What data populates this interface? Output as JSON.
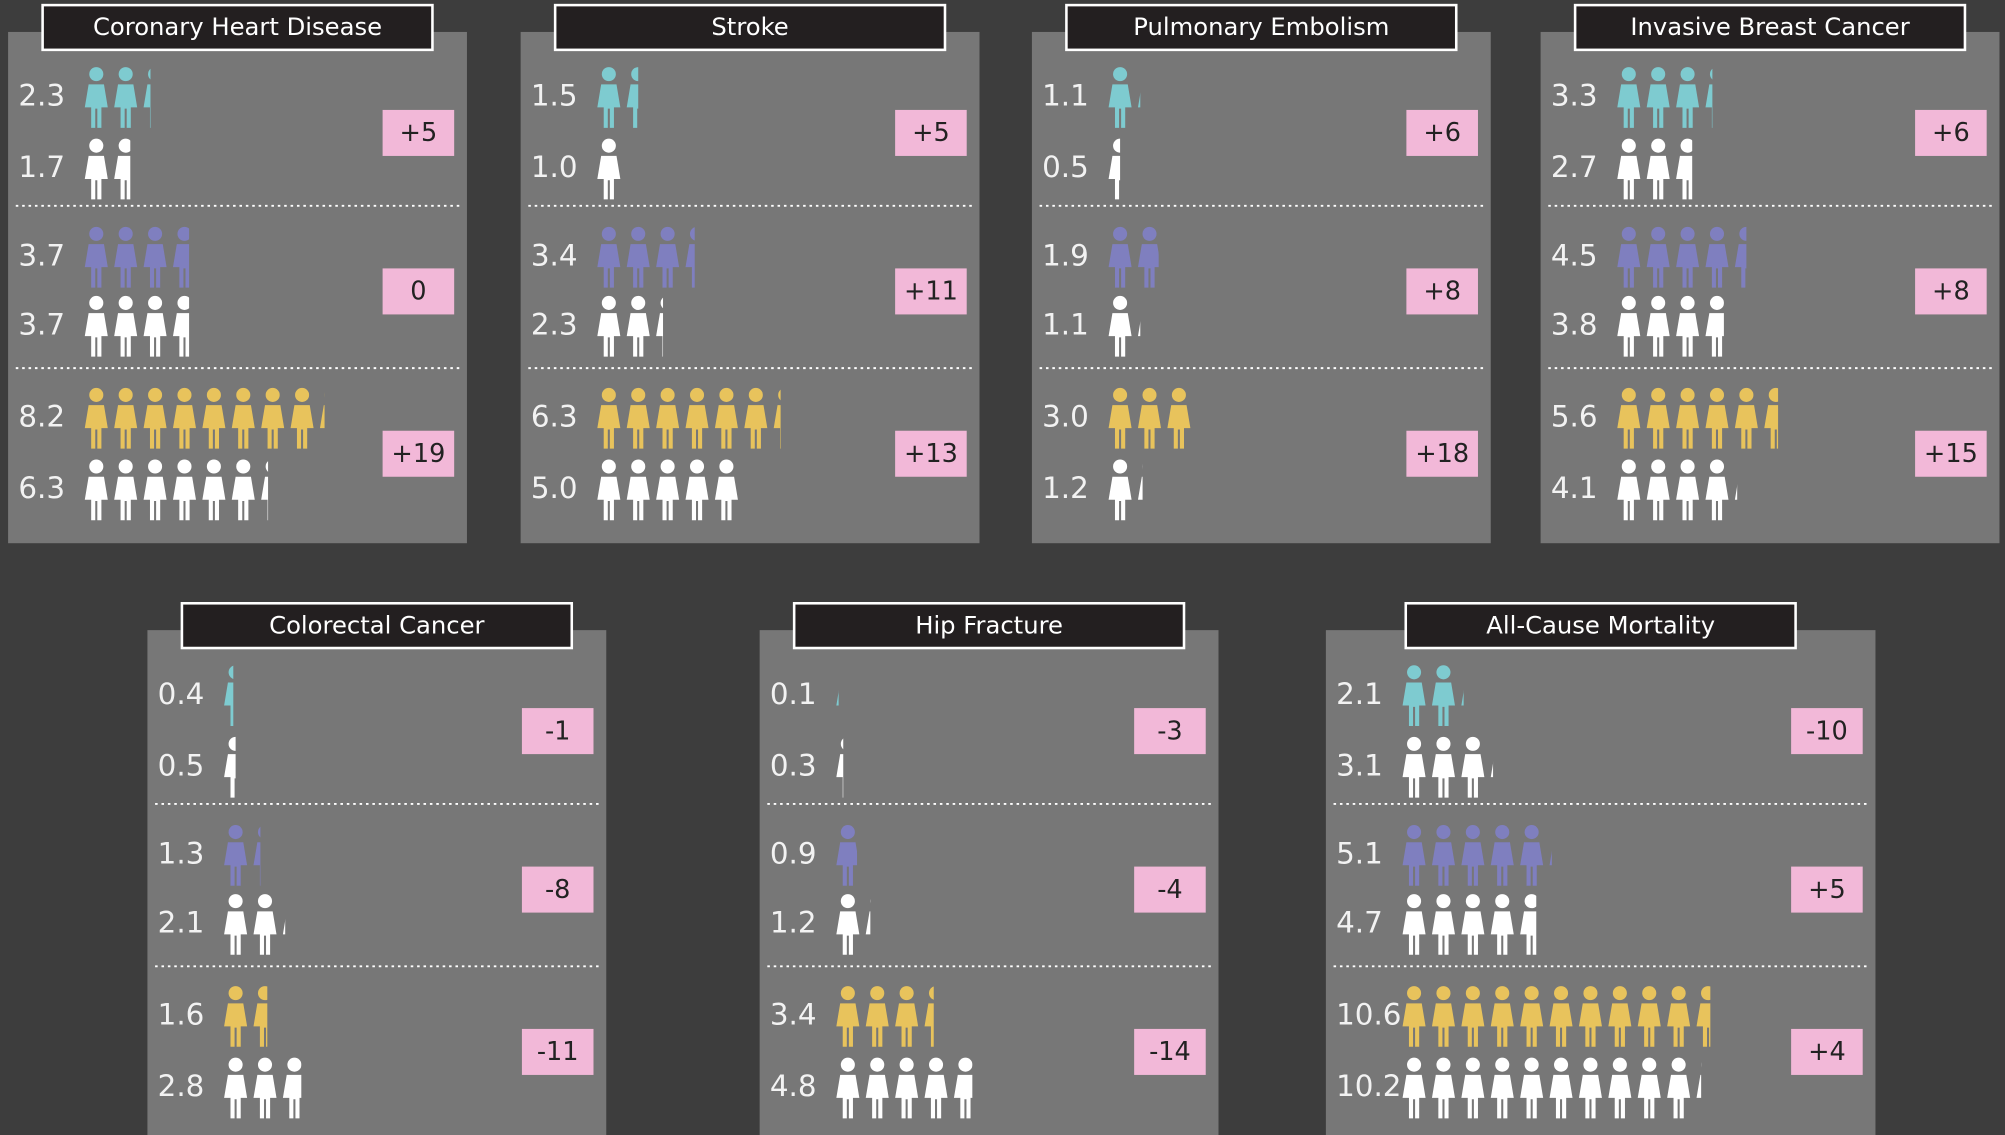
{
  "chart_data": [
    {
      "type": "pictogram",
      "title": "Coronary Heart Disease",
      "groups": [
        {
          "colors": [
            "#7ecbd0",
            "#ffffff"
          ],
          "values": [
            2.3,
            1.7
          ],
          "value_labels": [
            "2.3",
            "1.7"
          ],
          "difference": "+5"
        },
        {
          "colors": [
            "#7f7fbf",
            "#ffffff"
          ],
          "values": [
            3.7,
            3.7
          ],
          "value_labels": [
            "3.7",
            "3.7"
          ],
          "difference": "0"
        },
        {
          "colors": [
            "#e8c35c",
            "#ffffff"
          ],
          "values": [
            8.2,
            6.3
          ],
          "value_labels": [
            "8.2",
            "6.3"
          ],
          "difference": "+19"
        }
      ]
    },
    {
      "type": "pictogram",
      "title": "Stroke",
      "groups": [
        {
          "colors": [
            "#7ecbd0",
            "#ffffff"
          ],
          "values": [
            1.5,
            1.0
          ],
          "value_labels": [
            "1.5",
            "1.0"
          ],
          "difference": "+5"
        },
        {
          "colors": [
            "#7f7fbf",
            "#ffffff"
          ],
          "values": [
            3.4,
            2.3
          ],
          "value_labels": [
            "3.4",
            "2.3"
          ],
          "difference": "+11"
        },
        {
          "colors": [
            "#e8c35c",
            "#ffffff"
          ],
          "values": [
            6.3,
            5.0
          ],
          "value_labels": [
            "6.3",
            "5.0"
          ],
          "difference": "+13"
        }
      ]
    },
    {
      "type": "pictogram",
      "title": "Pulmonary Embolism",
      "groups": [
        {
          "colors": [
            "#7ecbd0",
            "#ffffff"
          ],
          "values": [
            1.1,
            0.5
          ],
          "value_labels": [
            "1.1",
            "0.5"
          ],
          "difference": "+6"
        },
        {
          "colors": [
            "#7f7fbf",
            "#ffffff"
          ],
          "values": [
            1.9,
            1.1
          ],
          "value_labels": [
            "1.9",
            "1.1"
          ],
          "difference": "+8"
        },
        {
          "colors": [
            "#e8c35c",
            "#ffffff"
          ],
          "values": [
            3.0,
            1.2
          ],
          "value_labels": [
            "3.0",
            "1.2"
          ],
          "difference": "+18"
        }
      ]
    },
    {
      "type": "pictogram",
      "title": "Invasive Breast Cancer",
      "groups": [
        {
          "colors": [
            "#7ecbd0",
            "#ffffff"
          ],
          "values": [
            3.3,
            2.7
          ],
          "value_labels": [
            "3.3",
            "2.7"
          ],
          "difference": "+6"
        },
        {
          "colors": [
            "#7f7fbf",
            "#ffffff"
          ],
          "values": [
            4.5,
            3.8
          ],
          "value_labels": [
            "4.5",
            "3.8"
          ],
          "difference": "+8"
        },
        {
          "colors": [
            "#e8c35c",
            "#ffffff"
          ],
          "values": [
            5.6,
            4.1
          ],
          "value_labels": [
            "5.6",
            "4.1"
          ],
          "difference": "+15"
        }
      ]
    },
    {
      "type": "pictogram",
      "title": "Colorectal Cancer",
      "groups": [
        {
          "colors": [
            "#7ecbd0",
            "#ffffff"
          ],
          "values": [
            0.4,
            0.5
          ],
          "value_labels": [
            "0.4",
            "0.5"
          ],
          "difference": "-1"
        },
        {
          "colors": [
            "#7f7fbf",
            "#ffffff"
          ],
          "values": [
            1.3,
            2.1
          ],
          "value_labels": [
            "1.3",
            "2.1"
          ],
          "difference": "-8"
        },
        {
          "colors": [
            "#e8c35c",
            "#ffffff"
          ],
          "values": [
            1.6,
            2.8
          ],
          "value_labels": [
            "1.6",
            "2.8"
          ],
          "difference": "-11"
        }
      ]
    },
    {
      "type": "pictogram",
      "title": "Hip Fracture",
      "groups": [
        {
          "colors": [
            "#7ecbd0",
            "#ffffff"
          ],
          "values": [
            0.1,
            0.3
          ],
          "value_labels": [
            "0.1",
            "0.3"
          ],
          "difference": "-3"
        },
        {
          "colors": [
            "#7f7fbf",
            "#ffffff"
          ],
          "values": [
            0.9,
            1.2
          ],
          "value_labels": [
            "0.9",
            "1.2"
          ],
          "difference": "-4"
        },
        {
          "colors": [
            "#e8c35c",
            "#ffffff"
          ],
          "values": [
            3.4,
            4.8
          ],
          "value_labels": [
            "3.4",
            "4.8"
          ],
          "difference": "-14"
        }
      ]
    },
    {
      "type": "pictogram",
      "title": "All-Cause Mortality",
      "groups": [
        {
          "colors": [
            "#7ecbd0",
            "#ffffff"
          ],
          "values": [
            2.1,
            3.1
          ],
          "value_labels": [
            "2.1",
            "3.1"
          ],
          "difference": "-10"
        },
        {
          "colors": [
            "#7f7fbf",
            "#ffffff"
          ],
          "values": [
            5.1,
            4.7
          ],
          "value_labels": [
            "5.1",
            "4.7"
          ],
          "difference": "+5"
        },
        {
          "colors": [
            "#e8c35c",
            "#ffffff"
          ],
          "values": [
            10.6,
            10.2
          ],
          "value_labels": [
            "10.6",
            "10.2"
          ],
          "difference": "+4"
        }
      ]
    }
  ]
}
